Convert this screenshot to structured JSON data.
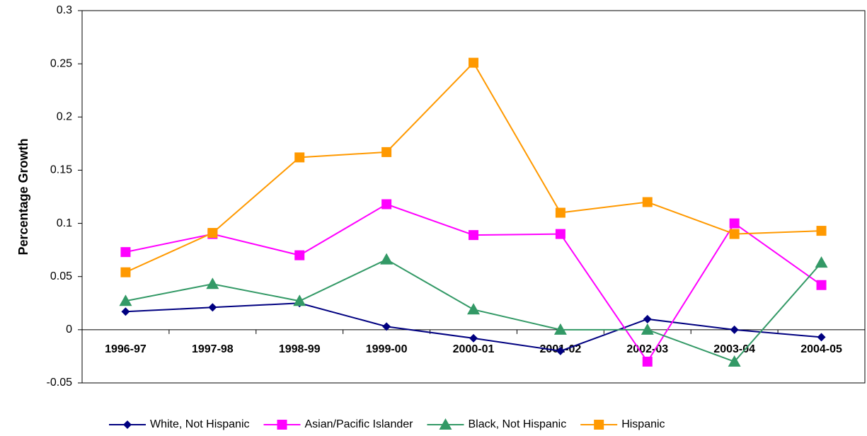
{
  "chart_data": {
    "type": "line",
    "y_label": "Percentage Growth",
    "categories": [
      "1996-97",
      "1997-98",
      "1998-99",
      "1999-00",
      "2000-01",
      "2001-02",
      "2002-03",
      "2003-04",
      "2004-05"
    ],
    "series": [
      {
        "name": "White, Not Hispanic",
        "color": "#000080",
        "marker": "diamond",
        "values": [
          0.017,
          0.021,
          0.025,
          0.003,
          -0.008,
          -0.02,
          0.01,
          0.0,
          -0.007
        ]
      },
      {
        "name": "Asian/Pacific Islander",
        "color": "#ff00ff",
        "marker": "square",
        "values": [
          0.073,
          0.09,
          0.07,
          0.118,
          0.089,
          0.09,
          -0.03,
          0.1,
          0.042
        ]
      },
      {
        "name": "Black, Not Hispanic",
        "color": "#339966",
        "marker": "triangle",
        "values": [
          0.027,
          0.043,
          0.027,
          0.066,
          0.019,
          0.0,
          0.0,
          -0.03,
          0.063
        ]
      },
      {
        "name": "Hispanic",
        "color": "#ff9900",
        "marker": "square",
        "values": [
          0.054,
          0.091,
          0.162,
          0.167,
          0.251,
          0.11,
          0.12,
          0.09,
          0.093
        ]
      }
    ],
    "ylim": [
      -0.05,
      0.3
    ],
    "yticks": [
      -0.05,
      0,
      0.05,
      0.1,
      0.15,
      0.2,
      0.25,
      0.3
    ],
    "grid": false,
    "legend": "bottom"
  }
}
